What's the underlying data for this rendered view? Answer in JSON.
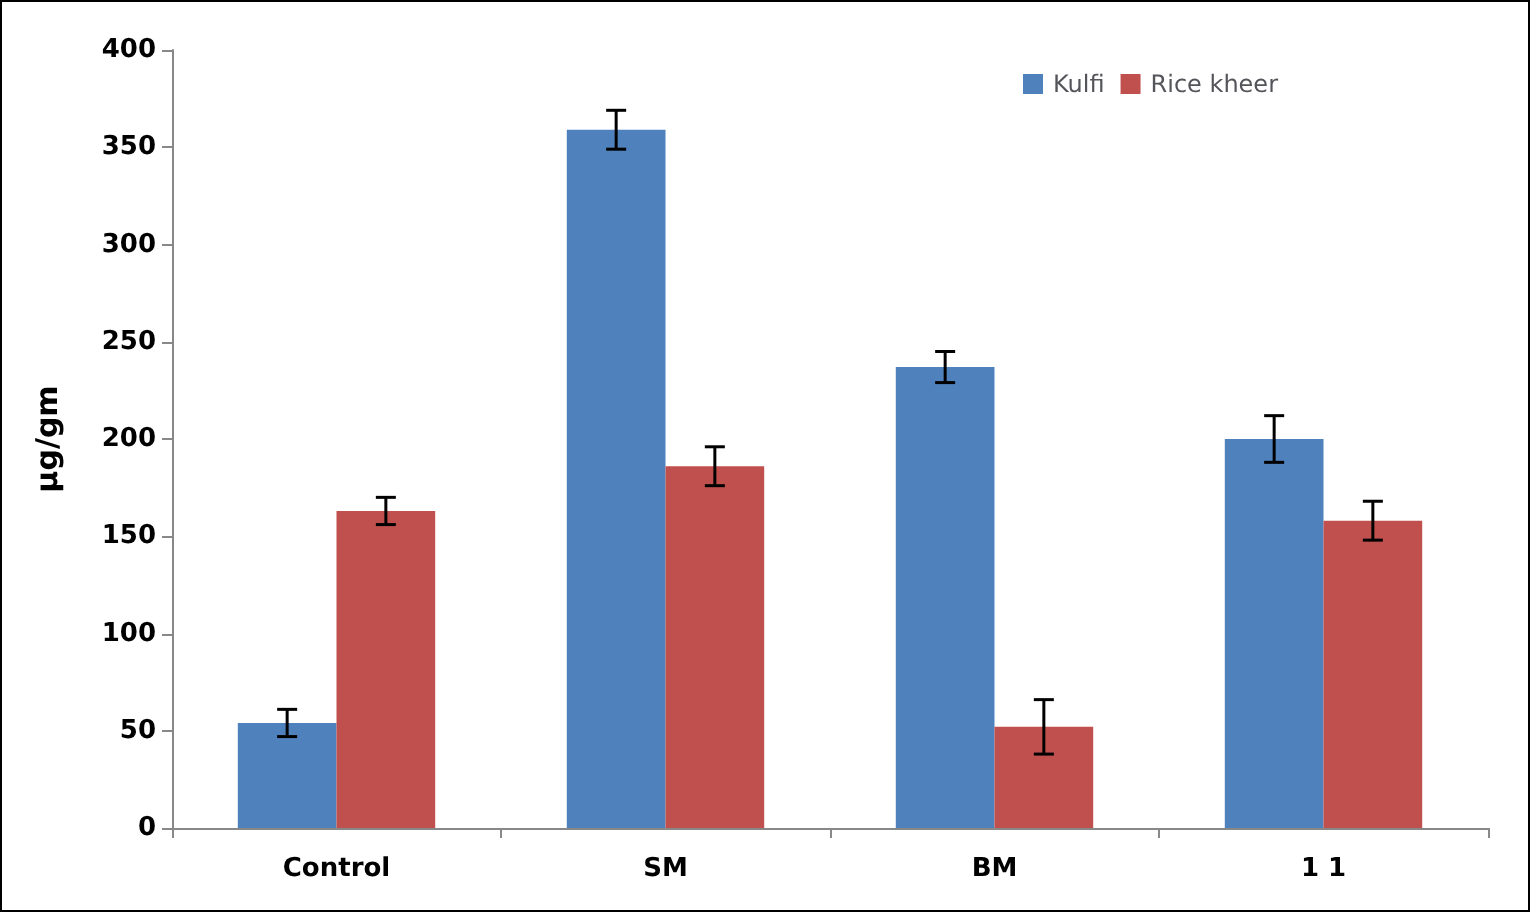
{
  "chart_data": {
    "type": "bar",
    "ylabel": "µg/gm",
    "categories": [
      "Control",
      "SM",
      "BM",
      "1 1"
    ],
    "series": [
      {
        "name": "Kulfi",
        "color": "#4f81bd",
        "values": [
          54,
          359,
          237,
          200
        ],
        "errors": [
          7,
          10,
          8,
          12
        ]
      },
      {
        "name": "Rice kheer",
        "color": "#c0504d",
        "values": [
          163,
          186,
          52,
          158
        ],
        "errors": [
          7,
          10,
          14,
          10
        ]
      }
    ],
    "ylim": [
      0,
      400
    ],
    "yticks": [
      0,
      50,
      100,
      150,
      200,
      250,
      300,
      350,
      400
    ],
    "grid": false,
    "legend": "top right"
  }
}
